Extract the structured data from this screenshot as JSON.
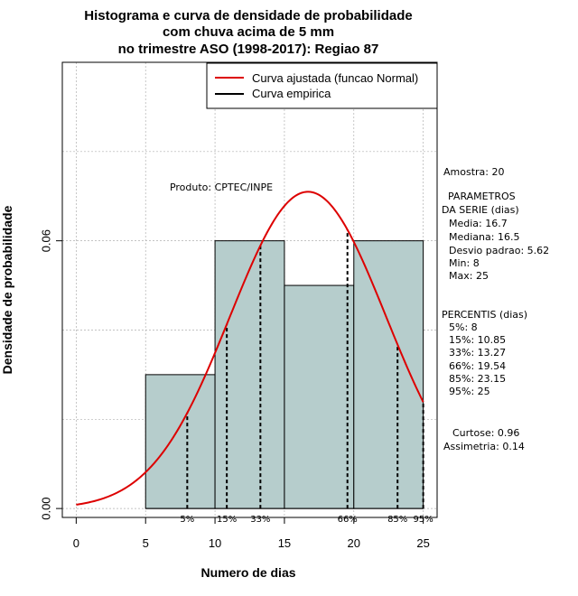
{
  "chart_data": {
    "type": "bar",
    "title_lines": [
      "Histograma e curva de densidade de probabilidade",
      "com chuva acima de 5 mm",
      "no trimestre ASO (1998-2017): Regiao 87"
    ],
    "xlabel": "Numero de dias",
    "ylabel": "Densidade de probabilidade",
    "xlim": [
      -1,
      26
    ],
    "ylim": [
      -0.002,
      0.1
    ],
    "x_ticks": [
      "0",
      "5",
      "10",
      "15",
      "20",
      "25"
    ],
    "x_tick_values": [
      0,
      5,
      10,
      15,
      20,
      25
    ],
    "y_ticks": [
      "0.00",
      "0.06"
    ],
    "y_tick_values": [
      0,
      0.06
    ],
    "grid": true,
    "bins": [
      {
        "x0": 5,
        "x1": 10,
        "density": 0.03
      },
      {
        "x0": 10,
        "x1": 15,
        "density": 0.06
      },
      {
        "x0": 15,
        "x1": 20,
        "density": 0.05
      },
      {
        "x0": 20,
        "x1": 25,
        "density": 0.06
      }
    ],
    "normal_fit": {
      "mean": 16.7,
      "sd": 5.62,
      "x_from": 0,
      "x_to": 25
    },
    "percentiles": [
      {
        "label": "5%",
        "x": 8
      },
      {
        "label": "15%",
        "x": 10.85
      },
      {
        "label": "33%",
        "x": 13.27
      },
      {
        "label": "66%",
        "x": 19.54
      },
      {
        "label": "85%",
        "x": 23.15
      },
      {
        "label": "95%",
        "x": 25
      }
    ],
    "legend": {
      "position": "top-right",
      "entries": [
        {
          "name": "Curva ajustada (funcao Normal)",
          "color": "#dd0000"
        },
        {
          "name": "Curva empirica",
          "color": "#000000"
        }
      ]
    },
    "colors": {
      "bar_fill": "#b6cdcc",
      "curve": "#dd0000",
      "grid": "#b0b0b0"
    },
    "annotation": "Produto: CPTEC/INPE"
  },
  "side_panel": {
    "amostra": "Amostra: 20",
    "parametros_title": "PARAMETROS",
    "serie_title": "DA SERIE (dias)",
    "params": [
      "Media: 16.7",
      "Mediana: 16.5",
      "Desvio padrao: 5.62",
      "Min: 8",
      "Max: 25"
    ],
    "percentis_title": "PERCENTIS (dias)",
    "percentis": [
      "5%: 8",
      "15%: 10.85",
      "33%: 13.27",
      "66%: 19.54",
      "85%: 23.15",
      "95%: 25"
    ],
    "curtose": "Curtose: 0.96",
    "assimetria": "Assimetria: 0.14"
  }
}
